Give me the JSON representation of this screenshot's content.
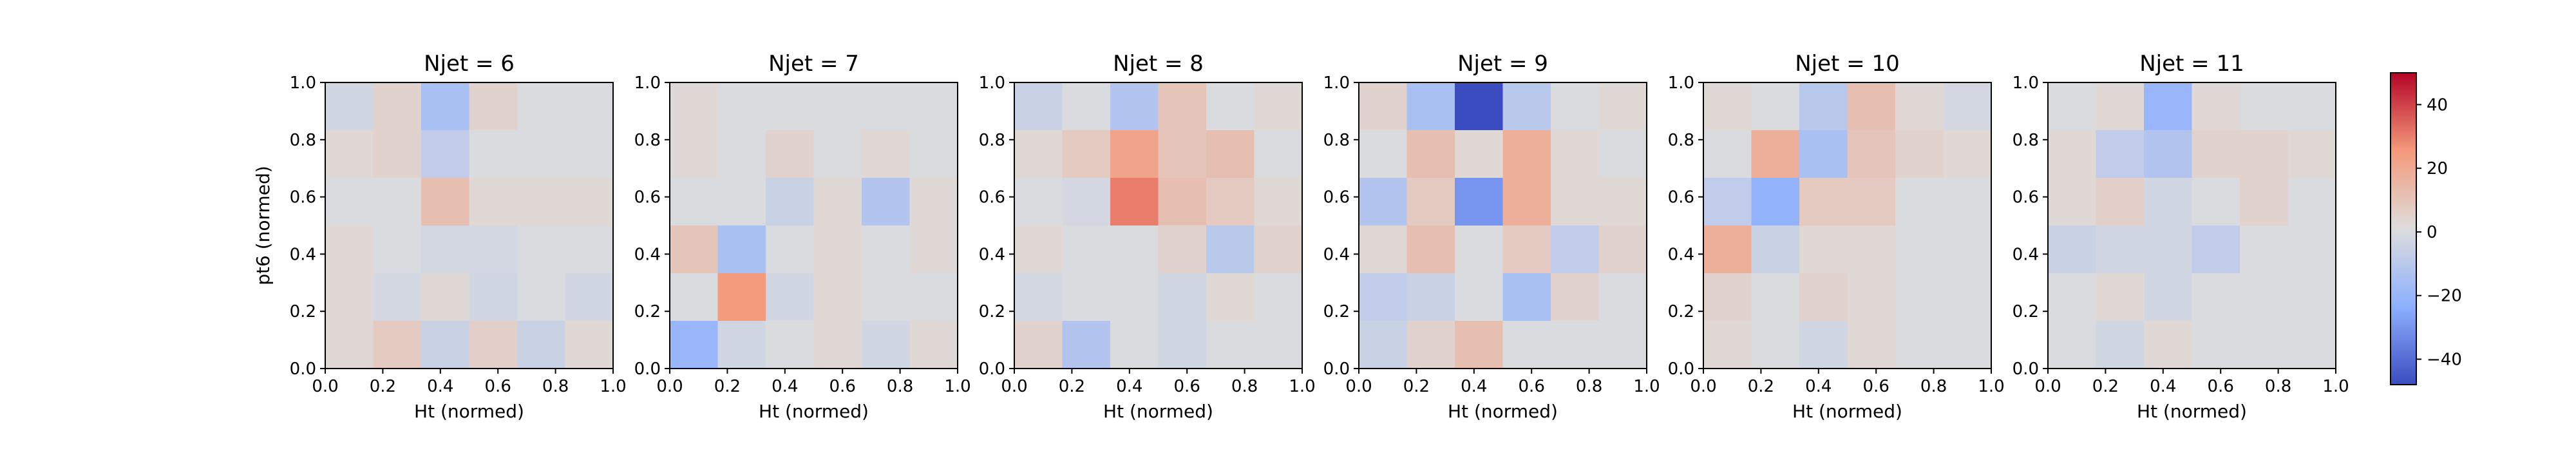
{
  "chart_data": {
    "type": "heatmap",
    "colormap": "coolwarm",
    "colorbar": {
      "range": [
        -48,
        50
      ],
      "ticks": [
        -40,
        -20,
        0,
        20,
        40
      ],
      "tick_labels": [
        "−40",
        "−20",
        "0",
        "20",
        "40"
      ]
    },
    "x_range": [
      0.0,
      1.0
    ],
    "y_range": [
      0.0,
      1.0
    ],
    "grid": "6x6",
    "x_tick_labels": [
      "0.0",
      "0.2",
      "0.4",
      "0.6",
      "0.8",
      "1.0"
    ],
    "y_tick_labels": [
      "0.0",
      "0.2",
      "0.4",
      "0.6",
      "0.8",
      "1.0"
    ],
    "xlabel": "Ht (normed)",
    "ylabel": "pt6 (normed)",
    "panels": [
      {
        "title": "Njet = 6",
        "values": [
          [
            -3,
            5,
            -15,
            5,
            0,
            0
          ],
          [
            3,
            5,
            -8,
            0,
            0,
            0
          ],
          [
            0,
            0,
            12,
            3,
            3,
            3
          ],
          [
            3,
            0,
            -2,
            -2,
            0,
            0
          ],
          [
            3,
            -2,
            3,
            -3,
            0,
            -3
          ],
          [
            3,
            8,
            -5,
            6,
            -5,
            3
          ]
        ]
      },
      {
        "title": "Njet = 7",
        "values": [
          [
            3,
            0,
            0,
            0,
            0,
            0
          ],
          [
            3,
            0,
            5,
            0,
            3,
            0
          ],
          [
            0,
            0,
            -5,
            3,
            -12,
            3
          ],
          [
            10,
            -15,
            0,
            3,
            0,
            3
          ],
          [
            0,
            25,
            -3,
            3,
            0,
            0
          ],
          [
            -20,
            -3,
            0,
            3,
            -3,
            3
          ]
        ]
      },
      {
        "title": "Njet = 8",
        "values": [
          [
            -5,
            0,
            -12,
            10,
            0,
            3
          ],
          [
            3,
            8,
            22,
            10,
            12,
            0
          ],
          [
            0,
            -2,
            30,
            12,
            8,
            3
          ],
          [
            3,
            0,
            0,
            5,
            -10,
            5
          ],
          [
            -2,
            0,
            0,
            -3,
            3,
            0
          ],
          [
            5,
            -12,
            0,
            -3,
            0,
            0
          ]
        ]
      },
      {
        "title": "Njet = 9",
        "values": [
          [
            5,
            -15,
            -48,
            -10,
            0,
            3
          ],
          [
            0,
            12,
            3,
            18,
            3,
            0
          ],
          [
            -12,
            8,
            -30,
            18,
            3,
            3
          ],
          [
            3,
            12,
            0,
            8,
            -8,
            5
          ],
          [
            -8,
            -5,
            0,
            -15,
            5,
            0
          ],
          [
            -5,
            5,
            12,
            0,
            0,
            0
          ]
        ]
      },
      {
        "title": "Njet = 10",
        "values": [
          [
            3,
            0,
            -10,
            12,
            3,
            -2
          ],
          [
            0,
            18,
            -15,
            10,
            5,
            3
          ],
          [
            -8,
            -22,
            8,
            8,
            0,
            0
          ],
          [
            18,
            -5,
            3,
            3,
            0,
            0
          ],
          [
            5,
            0,
            5,
            3,
            0,
            0
          ],
          [
            3,
            0,
            -3,
            3,
            0,
            0
          ]
        ]
      },
      {
        "title": "Njet = 11",
        "values": [
          [
            0,
            3,
            -20,
            3,
            0,
            0
          ],
          [
            3,
            -8,
            -12,
            5,
            5,
            3
          ],
          [
            3,
            6,
            -3,
            0,
            5,
            0
          ],
          [
            -5,
            -3,
            -3,
            -8,
            0,
            0
          ],
          [
            0,
            3,
            -3,
            0,
            0,
            0
          ],
          [
            0,
            -3,
            3,
            0,
            0,
            0
          ]
        ]
      }
    ]
  }
}
